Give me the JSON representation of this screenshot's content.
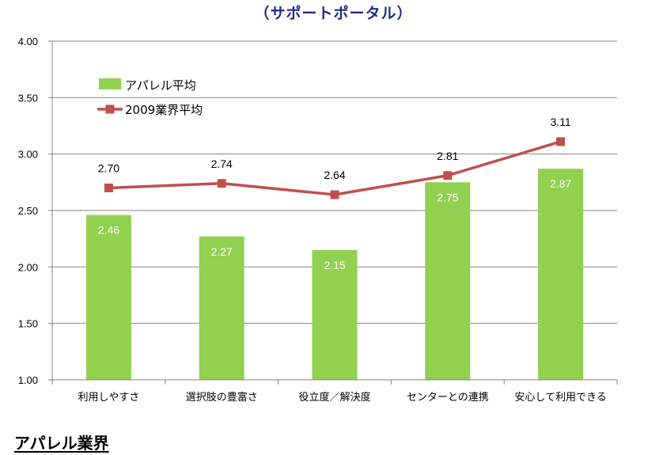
{
  "header": {
    "title": "（サポートポータル）"
  },
  "footer": {
    "heading": "アパレル業界"
  },
  "colors": {
    "bar": "#92d050",
    "line": "#c0504d",
    "title": "#1f2c8f"
  },
  "chart_data": {
    "type": "bar",
    "categories": [
      "利用しやすさ",
      "選択肢の豊富さ",
      "役立度／解決度",
      "センターとの連携",
      "安心して利用できる"
    ],
    "series": [
      {
        "name": "アパレル平均",
        "type": "bar",
        "values": [
          2.46,
          2.27,
          2.15,
          2.75,
          2.87
        ]
      },
      {
        "name": "2009業界平均",
        "type": "line",
        "values": [
          2.7,
          2.74,
          2.64,
          2.81,
          3.11
        ]
      }
    ],
    "yticks": [
      "1.00",
      "1.50",
      "2.00",
      "2.50",
      "3.00",
      "3.50",
      "4.00"
    ],
    "ylim": [
      1.0,
      4.0
    ],
    "grid": true,
    "legend": "top-left"
  }
}
